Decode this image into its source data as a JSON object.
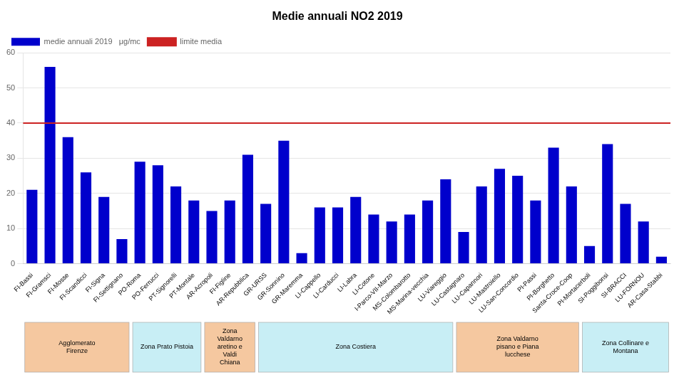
{
  "chart_data": {
    "type": "bar",
    "title": "Medie annuali NO2 2019",
    "categories": [
      "FI-Bassi",
      "FI-Gramsci",
      "FI-Mosse",
      "FI-Scandicci",
      "FI-Signa",
      "FI-Settignano",
      "PO-Roma",
      "PO-Ferrucci",
      "PT-Signorelli",
      "PT-Montale",
      "AR-Acropoli",
      "FI-Figline",
      "AR-Repubblica",
      "GR-URSS",
      "GR-Sonnino",
      "GR-Maremma",
      "LI-Cappello",
      "LI-Carducci",
      "LI-Labra",
      "LI-Cotone",
      "I-Parco-VII-Marzo",
      "MS-Colombarotto",
      "MS-Marina-vecchia",
      "LU-Viareggio",
      "LU-Castagnaro",
      "LU-Capannori",
      "LU-Mastroiello",
      "LU-San-Concordio",
      "PI-Passi",
      "PI-Borghetto",
      "Santa-Croce-Coop",
      "PI-Mortacerboli",
      "SI-Poggibonsi",
      "SI-BRACCI",
      "LU-FORNOU",
      "AR-Casa-Stabbi"
    ],
    "series": [
      {
        "name": "medie annuali 2019   μg/mc",
        "color": "#0000cc",
        "values": [
          21,
          56,
          36,
          26,
          19,
          7,
          29,
          28,
          22,
          18,
          15,
          18,
          31,
          17,
          35,
          3,
          16,
          16,
          19,
          14,
          12,
          14,
          18,
          24,
          9,
          22,
          27,
          25,
          18,
          33,
          22,
          5,
          34,
          17,
          12,
          2
        ]
      }
    ],
    "reference_lines": [
      {
        "name": "limite media",
        "value": 40,
        "color": "#cc2222"
      }
    ],
    "zones": [
      {
        "label": "Agglomerato\nFirenze",
        "from": "FI-Bassi",
        "to": "FI-Settignano",
        "color": "#f5c8a0"
      },
      {
        "label": "Zona Prato Pistoia",
        "from": "PO-Roma",
        "to": "PT-Montale",
        "color": "#c8eef5"
      },
      {
        "label": "Zona\nValdarno\naretino e\nValdi\nChiana",
        "from": "AR-Acropoli",
        "to": "AR-Repubblica",
        "color": "#f5c8a0"
      },
      {
        "label": "Zona Costiera",
        "from": "GR-URSS",
        "to": "LU-Viareggio",
        "color": "#c8eef5"
      },
      {
        "label": "Zona Valdarno\npisano e Piana\nlucchese",
        "from": "LU-Castagnaro",
        "to": "Santa-Croce-Coop",
        "color": "#f5c8a0"
      },
      {
        "label": "Zona Collinare e\nMontana",
        "from": "PI-Mortacerboli",
        "to": "AR-Casa-Stabbi",
        "color": "#c8eef5"
      }
    ],
    "ylim": [
      0,
      60
    ],
    "yticks": [
      0,
      10,
      20,
      30,
      40,
      50,
      60
    ],
    "grid": true,
    "legend": "upper left"
  }
}
